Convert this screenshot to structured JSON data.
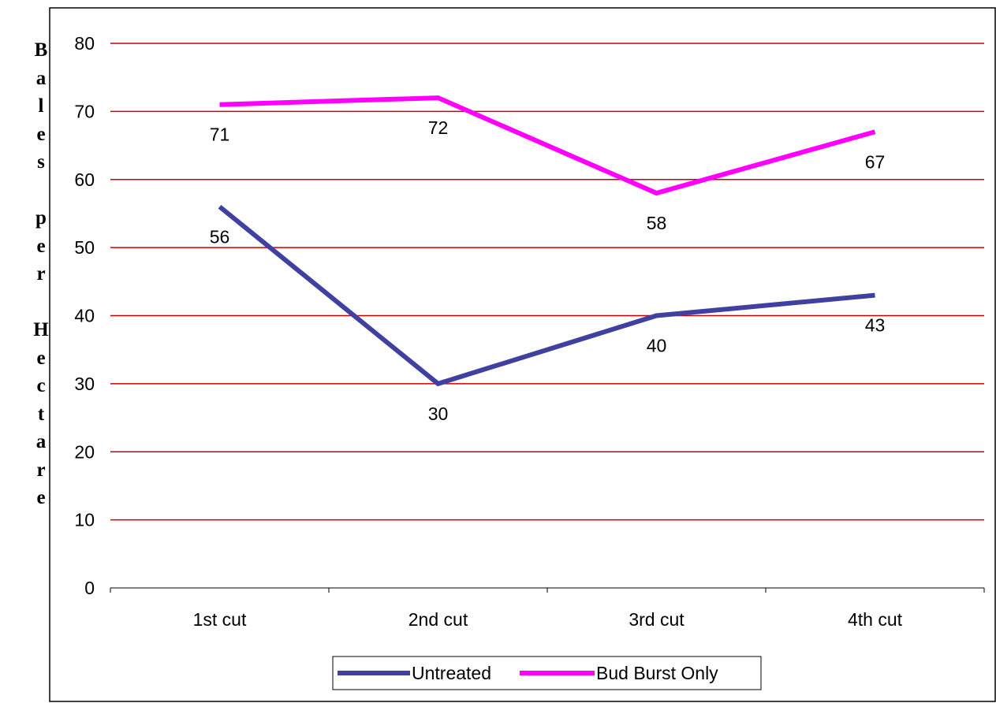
{
  "chart_data": {
    "type": "line",
    "title": "",
    "xlabel": "",
    "ylabel": "Bales per Hectare",
    "categories": [
      "1st cut",
      "2nd cut",
      "3rd cut",
      "4th cut"
    ],
    "ylim": [
      0,
      80
    ],
    "yticks": [
      0,
      10,
      20,
      30,
      40,
      50,
      60,
      70,
      80
    ],
    "grid": true,
    "legend_position": "bottom",
    "series": [
      {
        "name": "Untreated",
        "values": [
          56,
          30,
          40,
          43
        ],
        "color": "#4040a0",
        "labels": [
          "56",
          "30",
          "40",
          "43"
        ]
      },
      {
        "name": "Bud Burst Only",
        "values": [
          71,
          72,
          58,
          67
        ],
        "color": "#ff00ff",
        "labels": [
          "71",
          "72",
          "58",
          "67"
        ]
      }
    ],
    "gridline_color": "#cc0000"
  }
}
